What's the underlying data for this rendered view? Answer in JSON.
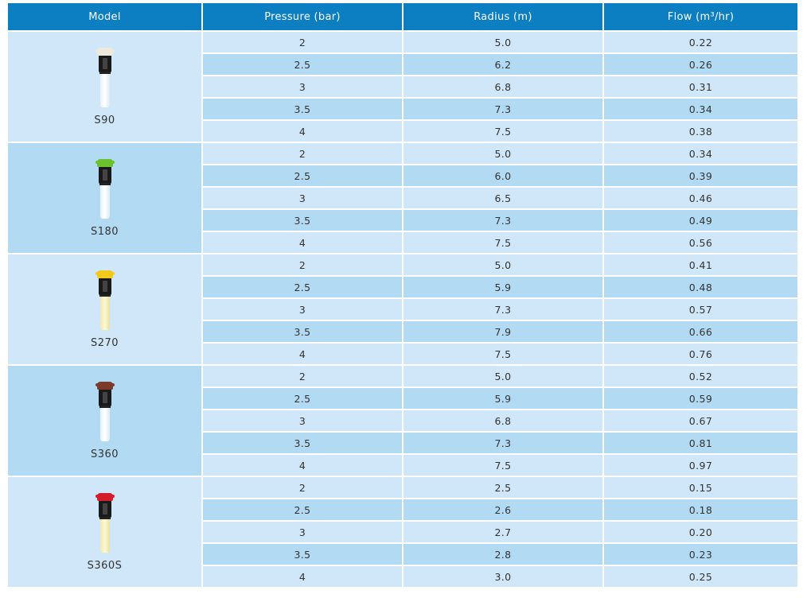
{
  "headers": [
    "Model",
    "Pressure (bar)",
    "Radius (m)",
    "Flow (m³/hr)"
  ],
  "groups": [
    {
      "model": "S90",
      "cap_color": "#efe9dc",
      "stem": "clear",
      "rows": [
        [
          "2",
          "5.0",
          "0.22"
        ],
        [
          "2.5",
          "6.2",
          "0.26"
        ],
        [
          "3",
          "6.8",
          "0.31"
        ],
        [
          "3.5",
          "7.3",
          "0.34"
        ],
        [
          "4",
          "7.5",
          "0.38"
        ]
      ]
    },
    {
      "model": "S180",
      "cap_color": "#6cc12e",
      "stem": "clear",
      "rows": [
        [
          "2",
          "5.0",
          "0.34"
        ],
        [
          "2.5",
          "6.0",
          "0.39"
        ],
        [
          "3",
          "6.5",
          "0.46"
        ],
        [
          "3.5",
          "7.3",
          "0.49"
        ],
        [
          "4",
          "7.5",
          "0.56"
        ]
      ]
    },
    {
      "model": "S270",
      "cap_color": "#f3c91c",
      "stem": "yellow",
      "rows": [
        [
          "2",
          "5.0",
          "0.41"
        ],
        [
          "2.5",
          "5.9",
          "0.48"
        ],
        [
          "3",
          "7.3",
          "0.57"
        ],
        [
          "3.5",
          "7.9",
          "0.66"
        ],
        [
          "4",
          "7.5",
          "0.76"
        ]
      ]
    },
    {
      "model": "S360",
      "cap_color": "#7a3b2a",
      "stem": "clear",
      "rows": [
        [
          "2",
          "5.0",
          "0.52"
        ],
        [
          "2.5",
          "5.9",
          "0.59"
        ],
        [
          "3",
          "6.8",
          "0.67"
        ],
        [
          "3.5",
          "7.3",
          "0.81"
        ],
        [
          "4",
          "7.5",
          "0.97"
        ]
      ]
    },
    {
      "model": "S360S",
      "cap_color": "#d41d2b",
      "stem": "yellow",
      "rows": [
        [
          "2",
          "2.5",
          "0.15"
        ],
        [
          "2.5",
          "2.6",
          "0.18"
        ],
        [
          "3",
          "2.7",
          "0.20"
        ],
        [
          "3.5",
          "2.8",
          "0.23"
        ],
        [
          "4",
          "3.0",
          "0.25"
        ]
      ]
    }
  ],
  "colors": {
    "header_bg": "#0b7fc2",
    "row_light": "#cfe7f8",
    "row_dark": "#b2daf3"
  }
}
